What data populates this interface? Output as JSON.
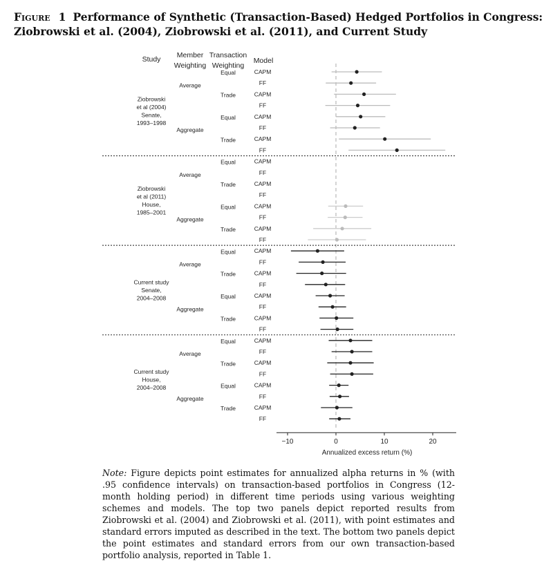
{
  "figure": {
    "label": "Figure",
    "number": "1",
    "title": "Performance of Synthetic (Transaction-Based) Hedged Portfolios in Congress: Ziobrowski et al. (2004), Ziobrowski et al. (2011), and Current Study"
  },
  "note": {
    "label": "Note:",
    "text": "Figure depicts point estimates for annualized alpha returns in % (with .95 confidence intervals) on transaction-based portfolios in Congress (12-month holding period) in different time periods using various weighting schemes and models. The top two panels depict reported results from Ziobrowski et al. (2004) and Ziobrowski et al. (2011), with point estimates and standard errors imputed as described in the text. The bottom two panels depict the point estimates and standard errors from our own transaction-based portfolio analysis, reported in Table 1."
  },
  "chart_data": {
    "type": "scatter",
    "subtype": "forest-plot",
    "column_headers": {
      "study": "Study",
      "member_weighting": [
        "Member",
        "Weighting"
      ],
      "transaction_weighting": [
        "Transaction",
        "Weighting"
      ],
      "model": "Model"
    },
    "xlabel": "Annualized excess return (%)",
    "xlim": [
      -11,
      25
    ],
    "xticks": [
      -10,
      0,
      10,
      20
    ],
    "xtick_labels": [
      "−10",
      "0",
      "10",
      "20"
    ],
    "reference_line_x": 0,
    "panels": [
      {
        "study": [
          "Ziobrowski",
          "et al (2004)",
          "Senate,",
          "1993–1998"
        ],
        "marker_color": "#222222",
        "ci_color": "#bbbbbb",
        "rows": [
          {
            "member": "Average",
            "transaction": "Equal",
            "model": "CAPM",
            "estimate": 4.3,
            "lower": -0.9,
            "upper": 9.5
          },
          {
            "member": "Average",
            "transaction": "Equal",
            "model": "FF",
            "estimate": 3.1,
            "lower": -2.1,
            "upper": 8.3
          },
          {
            "member": "Average",
            "transaction": "Trade",
            "model": "CAPM",
            "estimate": 5.8,
            "lower": -0.4,
            "upper": 12.4
          },
          {
            "member": "Average",
            "transaction": "Trade",
            "model": "FF",
            "estimate": 4.5,
            "lower": -2.2,
            "upper": 11.2
          },
          {
            "member": "Aggregate",
            "transaction": "Equal",
            "model": "CAPM",
            "estimate": 5.1,
            "lower": 0.0,
            "upper": 10.2
          },
          {
            "member": "Aggregate",
            "transaction": "Equal",
            "model": "FF",
            "estimate": 3.9,
            "lower": -1.2,
            "upper": 9.1
          },
          {
            "member": "Aggregate",
            "transaction": "Trade",
            "model": "CAPM",
            "estimate": 10.1,
            "lower": 0.6,
            "upper": 19.6
          },
          {
            "member": "Aggregate",
            "transaction": "Trade",
            "model": "FF",
            "estimate": 12.6,
            "lower": 2.6,
            "upper": 22.6
          }
        ]
      },
      {
        "study": [
          "Ziobrowski",
          "et al (2011)",
          "House,",
          "1985–2001"
        ],
        "marker_color": "#bbbbbb",
        "ci_color": "#cccccc",
        "rows": [
          {
            "member": "Average",
            "transaction": "Equal",
            "model": "CAPM",
            "estimate": null,
            "lower": null,
            "upper": null
          },
          {
            "member": "Average",
            "transaction": "Equal",
            "model": "FF",
            "estimate": null,
            "lower": null,
            "upper": null
          },
          {
            "member": "Average",
            "transaction": "Trade",
            "model": "CAPM",
            "estimate": null,
            "lower": null,
            "upper": null
          },
          {
            "member": "Average",
            "transaction": "Trade",
            "model": "FF",
            "estimate": null,
            "lower": null,
            "upper": null
          },
          {
            "member": "Aggregate",
            "transaction": "Equal",
            "model": "CAPM",
            "estimate": 2.0,
            "lower": -1.6,
            "upper": 5.6
          },
          {
            "member": "Aggregate",
            "transaction": "Equal",
            "model": "FF",
            "estimate": 1.9,
            "lower": -1.7,
            "upper": 5.5
          },
          {
            "member": "Aggregate",
            "transaction": "Trade",
            "model": "CAPM",
            "estimate": 1.3,
            "lower": -4.7,
            "upper": 7.3
          },
          {
            "member": "Aggregate",
            "transaction": "Trade",
            "model": "FF",
            "estimate": 0.2,
            "lower": -5.8,
            "upper": 6.2
          }
        ]
      },
      {
        "study": [
          "Current study",
          "Senate,",
          "2004–2008"
        ],
        "marker_color": "#222222",
        "ci_color": "#222222",
        "rows": [
          {
            "member": "Average",
            "transaction": "Equal",
            "model": "CAPM",
            "estimate": -3.8,
            "lower": -9.3,
            "upper": 1.7
          },
          {
            "member": "Average",
            "transaction": "Equal",
            "model": "FF",
            "estimate": -2.7,
            "lower": -7.7,
            "upper": 2.0
          },
          {
            "member": "Average",
            "transaction": "Trade",
            "model": "CAPM",
            "estimate": -2.9,
            "lower": -8.2,
            "upper": 2.1
          },
          {
            "member": "Average",
            "transaction": "Trade",
            "model": "FF",
            "estimate": -2.1,
            "lower": -6.4,
            "upper": 1.9
          },
          {
            "member": "Aggregate",
            "transaction": "Equal",
            "model": "CAPM",
            "estimate": -1.2,
            "lower": -4.2,
            "upper": 1.8
          },
          {
            "member": "Aggregate",
            "transaction": "Equal",
            "model": "FF",
            "estimate": -0.7,
            "lower": -3.6,
            "upper": 2.1
          },
          {
            "member": "Aggregate",
            "transaction": "Trade",
            "model": "CAPM",
            "estimate": 0.1,
            "lower": -3.4,
            "upper": 3.6
          },
          {
            "member": "Aggregate",
            "transaction": "Trade",
            "model": "FF",
            "estimate": 0.3,
            "lower": -3.2,
            "upper": 3.6
          }
        ]
      },
      {
        "study": [
          "Current study",
          "House,",
          "2004–2008"
        ],
        "marker_color": "#222222",
        "ci_color": "#222222",
        "rows": [
          {
            "member": "Average",
            "transaction": "Equal",
            "model": "CAPM",
            "estimate": 3.0,
            "lower": -1.5,
            "upper": 7.5
          },
          {
            "member": "Average",
            "transaction": "Equal",
            "model": "FF",
            "estimate": 3.3,
            "lower": -0.9,
            "upper": 7.5
          },
          {
            "member": "Average",
            "transaction": "Trade",
            "model": "CAPM",
            "estimate": 3.0,
            "lower": -1.8,
            "upper": 7.8
          },
          {
            "member": "Average",
            "transaction": "Trade",
            "model": "FF",
            "estimate": 3.3,
            "lower": -1.2,
            "upper": 7.7
          },
          {
            "member": "Aggregate",
            "transaction": "Equal",
            "model": "CAPM",
            "estimate": 0.6,
            "lower": -1.4,
            "upper": 2.6
          },
          {
            "member": "Aggregate",
            "transaction": "Equal",
            "model": "FF",
            "estimate": 0.8,
            "lower": -1.3,
            "upper": 2.7
          },
          {
            "member": "Aggregate",
            "transaction": "Trade",
            "model": "CAPM",
            "estimate": 0.2,
            "lower": -3.1,
            "upper": 3.4
          },
          {
            "member": "Aggregate",
            "transaction": "Trade",
            "model": "FF",
            "estimate": 0.7,
            "lower": -1.4,
            "upper": 3.0
          }
        ]
      }
    ]
  }
}
